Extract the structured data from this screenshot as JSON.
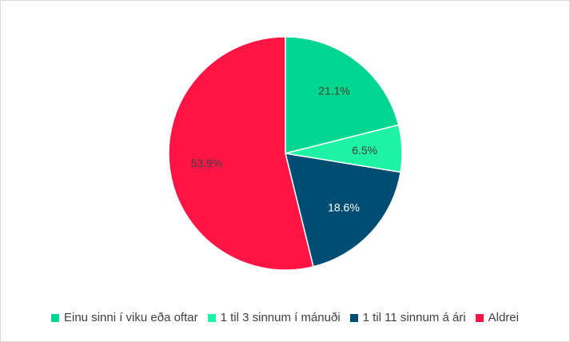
{
  "chart_data": {
    "type": "pie",
    "title": "",
    "start": "top, clockwise",
    "categories": [
      "Einu sinni í viku eða oftar",
      "1 til 3 sinnum í mánuði",
      "1 til 11 sinnum á ári",
      "Aldrei"
    ],
    "values": [
      21.1,
      6.5,
      18.6,
      53.9
    ],
    "data_labels": [
      "21.1%",
      "6.5%",
      "18.6%",
      "53.9%"
    ],
    "colors": [
      "#00d68f",
      "#1df2a5",
      "#004d73",
      "#ff1446"
    ],
    "legend_position": "bottom"
  }
}
